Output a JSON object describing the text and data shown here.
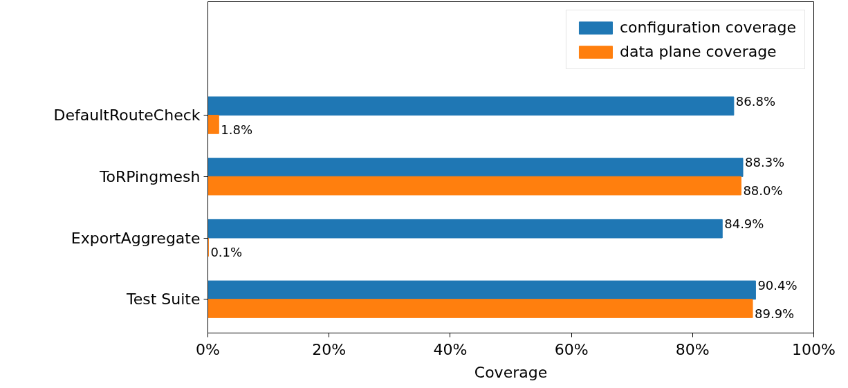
{
  "chart_data": {
    "type": "bar",
    "orientation": "horizontal",
    "xlabel": "Coverage",
    "categories": [
      "DefaultRouteCheck",
      "ToRPingmesh",
      "ExportAggregate",
      "Test Suite"
    ],
    "series": [
      {
        "name": "configuration coverage",
        "color": "#1f77b4",
        "values": [
          86.8,
          88.3,
          84.9,
          90.4
        ],
        "value_labels": [
          "86.8%",
          "88.3%",
          "84.9%",
          "90.4%"
        ]
      },
      {
        "name": "data plane coverage",
        "color": "#ff7f0e",
        "values": [
          1.8,
          88.0,
          0.1,
          89.9
        ],
        "value_labels": [
          "1.8%",
          "88.0%",
          "0.1%",
          "89.9%"
        ]
      }
    ],
    "xlim": [
      0,
      100
    ],
    "xticks": [
      {
        "value": 0,
        "label": "0%"
      },
      {
        "value": 20,
        "label": "20%"
      },
      {
        "value": 40,
        "label": "40%"
      },
      {
        "value": 60,
        "label": "60%"
      },
      {
        "value": 80,
        "label": "80%"
      },
      {
        "value": 100,
        "label": "100%"
      }
    ],
    "legend": "top right",
    "grid": false
  }
}
